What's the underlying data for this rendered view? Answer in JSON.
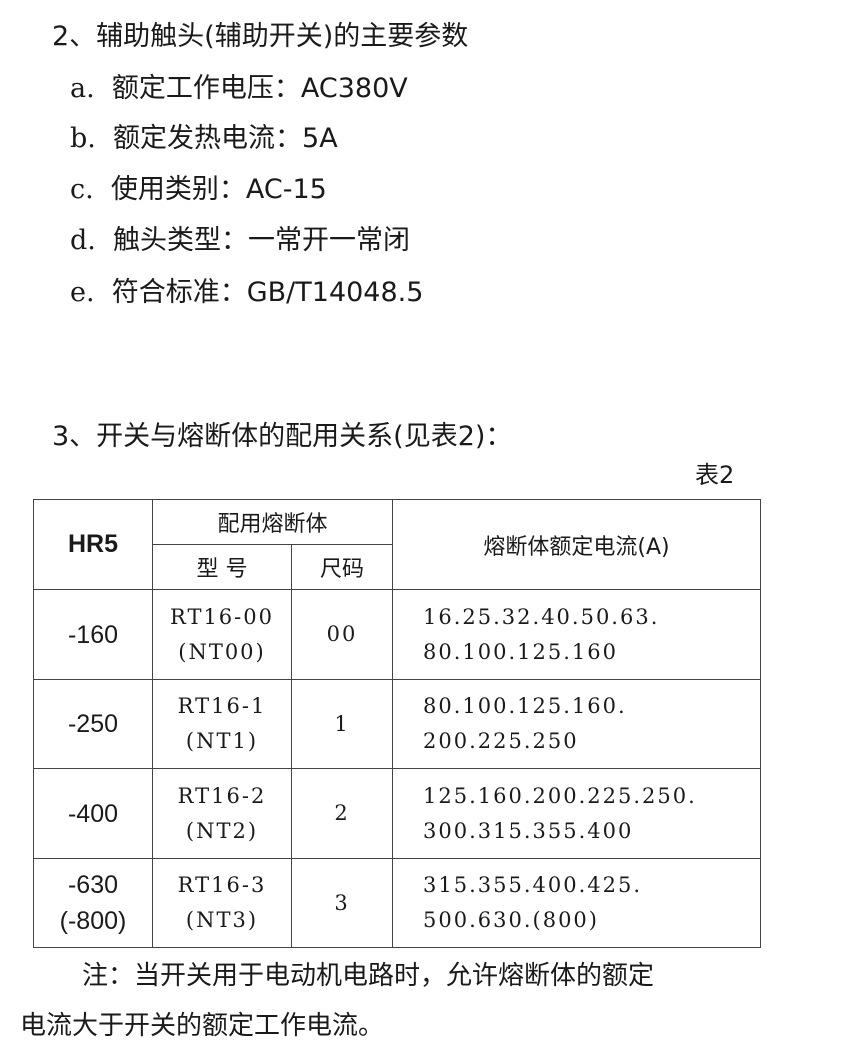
{
  "section2": {
    "heading": "2、辅助触头(辅助开关)的主要参数",
    "items": [
      {
        "marker": "a.",
        "text": "额定工作电压：AC380V"
      },
      {
        "marker": "b.",
        "text": "额定发热电流：5A"
      },
      {
        "marker": "c.",
        "text": "使用类别：AC-15"
      },
      {
        "marker": "d.",
        "text": "触头类型：一常开一常闭"
      },
      {
        "marker": "e.",
        "text": "符合标准：GB/T14048.5"
      }
    ]
  },
  "section3": {
    "heading": "3、开关与熔断体的配用关系(见表2)：",
    "table_label": "表2"
  },
  "table": {
    "headers": {
      "model": "HR5",
      "fuse_group": "配用熔断体",
      "type": "型 号",
      "size": "尺码",
      "current": "熔断体额定电流(A)"
    },
    "rows": [
      {
        "model": [
          "-160"
        ],
        "fuse": [
          "RT16-00",
          "(NT00)"
        ],
        "size": "00",
        "current": [
          "16.25.32.40.50.63.",
          "80.100.125.160"
        ]
      },
      {
        "model": [
          "-250"
        ],
        "fuse": [
          "RT16-1",
          "(NT1)"
        ],
        "size": "1",
        "current": [
          "80.100.125.160.",
          "200.225.250"
        ]
      },
      {
        "model": [
          "-400"
        ],
        "fuse": [
          "RT16-2",
          "(NT2)"
        ],
        "size": "2",
        "current": [
          "125.160.200.225.250.",
          "300.315.355.400"
        ]
      },
      {
        "model": [
          "-630",
          "(-800)"
        ],
        "fuse": [
          "RT16-3",
          "(NT3)"
        ],
        "size": "3",
        "current": [
          "315.355.400.425.",
          "500.630.(800)"
        ]
      }
    ]
  },
  "note": {
    "line1": "注：当开关用于电动机电路时，允许熔断体的额定",
    "line2": "电流大于开关的额定工作电流。"
  }
}
